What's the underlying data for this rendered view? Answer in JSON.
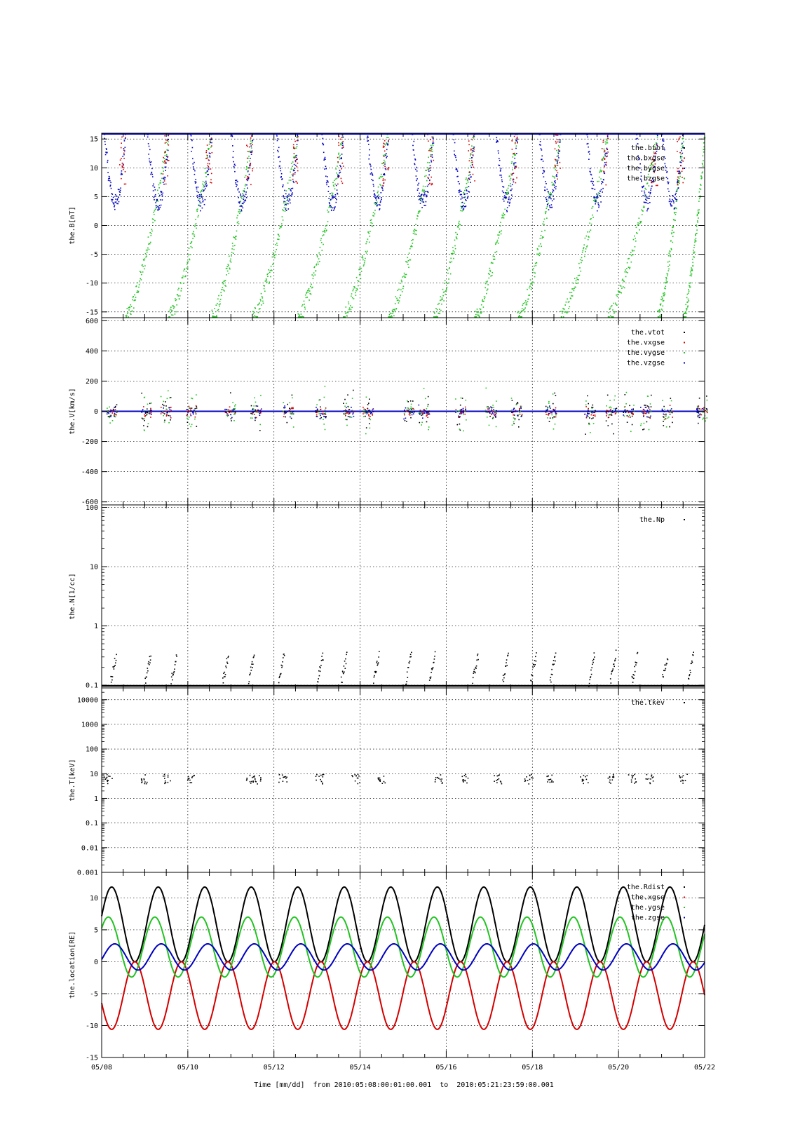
{
  "footer": {
    "xlabel": "Time [mm/dd]",
    "from_label": "from",
    "from_value": "2010:05:08:00:01:00.001",
    "to_label": "to",
    "to_value": "2010:05:21:23:59:00.001"
  },
  "colors": {
    "black": "#000000",
    "red": "#d40000",
    "green": "#22c322",
    "blue": "#0000c0"
  },
  "x_axis": {
    "start": "2010-05-08",
    "end": "2010-05-22",
    "ticks": [
      "05/08",
      "05/10",
      "05/12",
      "05/14",
      "05/16",
      "05/18",
      "05/20",
      "05/22"
    ]
  },
  "chart_data": [
    {
      "type": "scatter",
      "ylabel": "the.B[nT]",
      "ylim": [
        -16,
        16
      ],
      "yticks": [
        15,
        10,
        5,
        0,
        -5,
        -10,
        -15
      ],
      "grid": true,
      "legend_placement": "top-right",
      "series": [
        {
          "name": "the.btot",
          "color": "black",
          "description": "clipped above 16 nT"
        },
        {
          "name": "the.bxgse",
          "color": "red",
          "description": "near 5-16 nT late in each orbit"
        },
        {
          "name": "the.bygse",
          "color": "blue",
          "description": "arcs from 16 nT down to ~3 nT each orbit"
        },
        {
          "name": "the.bzgse",
          "color": "green",
          "description": "sawtooth from -16 to 16 nT each orbit"
        }
      ]
    },
    {
      "type": "scatter",
      "ylabel": "the.V[km/s]",
      "ylim": [
        -620,
        620
      ],
      "yticks": [
        600,
        400,
        200,
        0,
        -200,
        -400,
        -600
      ],
      "grid": true,
      "legend_placement": "top-right",
      "series": [
        {
          "name": "the.vtot",
          "color": "black"
        },
        {
          "name": "the.vxgse",
          "color": "red"
        },
        {
          "name": "the.vygse",
          "color": "green"
        },
        {
          "name": "the.vzgse",
          "color": "blue"
        }
      ]
    },
    {
      "type": "scatter",
      "ylabel": "the.N[1/cc]",
      "log_y": true,
      "ylim": [
        0.09,
        110
      ],
      "yticks": [
        100,
        10,
        1,
        0.1
      ],
      "grid": true,
      "legend_placement": "top-right",
      "series": [
        {
          "name": "the.Np",
          "color": "black"
        }
      ]
    },
    {
      "type": "scatter",
      "ylabel": "the.T[keV]",
      "log_y": true,
      "ylim": [
        0.001,
        30000
      ],
      "yticks": [
        10000,
        1000,
        100,
        10,
        1,
        0.1,
        0.01,
        0.001
      ],
      "ytick_labels": [
        "10000",
        "1000",
        "100",
        "10",
        "1",
        "0.1",
        "0.01",
        "0.001"
      ],
      "grid": true,
      "legend_placement": "top-right",
      "series": [
        {
          "name": "the.tkev",
          "color": "black"
        }
      ]
    },
    {
      "type": "line",
      "ylabel": "the.location[RE]",
      "ylim": [
        -15,
        14
      ],
      "yticks": [
        10,
        5,
        0,
        -5,
        -10,
        -15
      ],
      "grid": true,
      "legend_placement": "top-right",
      "orbit_period_days": 1.08,
      "series": [
        {
          "name": "the.Rdist",
          "color": "black",
          "min": 0,
          "max": 11.7
        },
        {
          "name": "the.xgse",
          "color": "red",
          "min": -10.6,
          "max": 0
        },
        {
          "name": "the.ygse",
          "color": "green",
          "min": -2.4,
          "max": 7.0
        },
        {
          "name": "the.zgse",
          "color": "blue",
          "min": -1.3,
          "max": 2.8
        }
      ]
    }
  ]
}
